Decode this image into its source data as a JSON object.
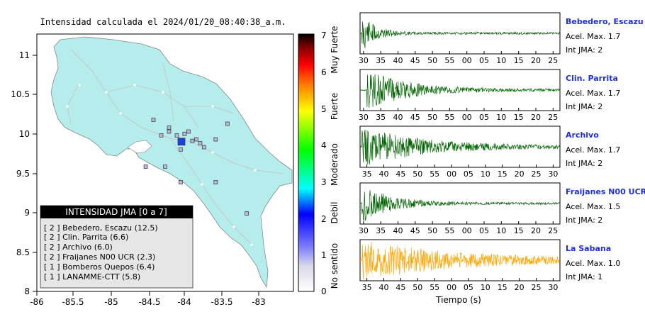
{
  "map": {
    "title": "Intensidad calculada el 2024/01/20_08:40:38_a.m.",
    "lat_ticks": [
      "11",
      "10.5",
      "10",
      "9.5",
      "9",
      "8.5",
      "8"
    ],
    "lon_ticks": [
      "-86",
      "-85.5",
      "-85",
      "-84.5",
      "-84",
      "-83.5",
      "-83"
    ],
    "xlim": [
      -86,
      -82.7
    ],
    "ylim": [
      8,
      11.3
    ],
    "land_color": "#b5ecec",
    "epicenter_color": "#1f3fe0",
    "legend": {
      "title": "INTENSIDAD JMA [0 a 7]",
      "items": [
        "[ 2 ]  Bebedero, Escazu (12.5)",
        "[ 2 ]  Clin. Parrita (6.6)",
        "[ 2 ]  Archivo (6.0)",
        "[ 2 ]  Fraijanes N00 UCR (2.3)",
        "[ 1 ]  Bomberos Quepos (6.4)",
        "[ 1 ]  LANAMME-CTT (5.8)"
      ]
    }
  },
  "colorbar": {
    "ticks": [
      "0",
      "1",
      "2",
      "3",
      "4",
      "5",
      "6",
      "7"
    ],
    "category_labels": [
      "No sentido",
      "Debil",
      "Moderado",
      "Fuerte",
      "Muy Fuerte"
    ],
    "colors": [
      "#ffffff",
      "#8080ff",
      "#0000ff",
      "#00ffff",
      "#00ff00",
      "#ffff00",
      "#ff8000",
      "#ff0000",
      "#800000",
      "#000000"
    ]
  },
  "waveforms": {
    "xlabel": "Tiempo (s)",
    "acel_prefix": "Acel. Max.",
    "int_prefix": "Int JMA:",
    "panels": [
      {
        "station": "Bebedero, Escazu",
        "acel": "1.7",
        "int": "2",
        "color": "#006400",
        "ticks": [
          "30",
          "35",
          "40",
          "45",
          "50",
          "55",
          "00",
          "05",
          "10",
          "15",
          "20",
          "25"
        ],
        "tmin": 29,
        "tmax": 87,
        "onset": 29.5,
        "decay": 4
      },
      {
        "station": "Clin. Parrita",
        "acel": "1.7",
        "int": "2",
        "color": "#006400",
        "ticks": [
          "30",
          "35",
          "40",
          "45",
          "50",
          "55",
          "00",
          "05",
          "10",
          "15",
          "20",
          "25"
        ],
        "tmin": 29,
        "tmax": 87,
        "onset": 31,
        "decay": 12
      },
      {
        "station": "Archivo",
        "acel": "1.7",
        "int": "2",
        "color": "#006400",
        "ticks": [
          "35",
          "40",
          "45",
          "50",
          "55",
          "00",
          "05",
          "10",
          "15",
          "20",
          "25",
          "30"
        ],
        "tmin": 33,
        "tmax": 92,
        "onset": 33.5,
        "decay": 18
      },
      {
        "station": "Fraijanes N00 UCR",
        "acel": "1.5",
        "int": "2",
        "color": "#006400",
        "ticks": [
          "30",
          "35",
          "40",
          "45",
          "50",
          "55",
          "00",
          "05",
          "10",
          "15",
          "20",
          "25"
        ],
        "tmin": 29,
        "tmax": 87,
        "onset": 29.5,
        "decay": 8
      },
      {
        "station": "La Sabana",
        "acel": "1.0",
        "int": "1",
        "color": "#ffa500",
        "ticks": [
          "35",
          "40",
          "45",
          "50",
          "55",
          "00",
          "05",
          "10",
          "15",
          "20",
          "25",
          "30"
        ],
        "tmin": 33,
        "tmax": 92,
        "onset": 33.5,
        "decay": 30
      }
    ]
  },
  "chart_data": [
    {
      "type": "scatter",
      "title": "Intensidad calculada el 2024/01/20_08:40:38_a.m.",
      "xlabel": "",
      "ylabel": "",
      "xlim": [
        -86,
        -82.7
      ],
      "ylim": [
        8,
        11.3
      ],
      "x_ticks": [
        "-86",
        "-85.5",
        "-85",
        "-84.5",
        "-84",
        "-83.5",
        "-83"
      ],
      "y_ticks": [
        "11",
        "10.5",
        "10",
        "9.5",
        "9",
        "8.5",
        "8"
      ],
      "legend_placement": "bottom-left",
      "series": [
        {
          "name": "INTENSIDAD JMA [0 a 7]",
          "points": [
            {
              "lon": -84.14,
              "lat": 9.92,
              "intensity": 2
            },
            {
              "lon": -84.0,
              "lat": 9.93,
              "intensity": 1
            },
            {
              "lon": -83.95,
              "lat": 9.95,
              "intensity": 1
            },
            {
              "lon": -84.2,
              "lat": 10.0,
              "intensity": 1
            },
            {
              "lon": -84.5,
              "lat": 10.2,
              "intensity": 1
            },
            {
              "lon": -84.4,
              "lat": 10.0,
              "intensity": 1
            },
            {
              "lon": -84.3,
              "lat": 10.1,
              "intensity": 1
            },
            {
              "lon": -84.05,
              "lat": 10.05,
              "intensity": 1
            },
            {
              "lon": -83.9,
              "lat": 9.9,
              "intensity": 1
            },
            {
              "lon": -83.7,
              "lat": 9.95,
              "intensity": 1
            },
            {
              "lon": -83.55,
              "lat": 10.15,
              "intensity": 1
            },
            {
              "lon": -83.85,
              "lat": 9.85,
              "intensity": 1
            },
            {
              "lon": -84.15,
              "lat": 9.82,
              "intensity": 1
            },
            {
              "lon": -84.6,
              "lat": 9.6,
              "intensity": 1
            },
            {
              "lon": -84.35,
              "lat": 9.6,
              "intensity": 1
            },
            {
              "lon": -84.15,
              "lat": 9.4,
              "intensity": 1
            },
            {
              "lon": -83.7,
              "lat": 9.4,
              "intensity": 1
            },
            {
              "lon": -83.3,
              "lat": 9.0,
              "intensity": 1
            },
            {
              "lon": -84.3,
              "lat": 10.05,
              "intensity": 1
            },
            {
              "lon": -84.1,
              "lat": 10.02,
              "intensity": 1
            }
          ]
        }
      ]
    },
    {
      "type": "line",
      "title": "",
      "xlabel": "Tiempo (s)",
      "ylabel": "",
      "series": [
        {
          "name": "Bebedero, Escazu",
          "acel_max": 1.7,
          "int_jma": 2
        },
        {
          "name": "Clin. Parrita",
          "acel_max": 1.7,
          "int_jma": 2
        },
        {
          "name": "Archivo",
          "acel_max": 1.7,
          "int_jma": 2
        },
        {
          "name": "Fraijanes N00 UCR",
          "acel_max": 1.5,
          "int_jma": 2
        },
        {
          "name": "La Sabana",
          "acel_max": 1.0,
          "int_jma": 1
        }
      ]
    }
  ]
}
